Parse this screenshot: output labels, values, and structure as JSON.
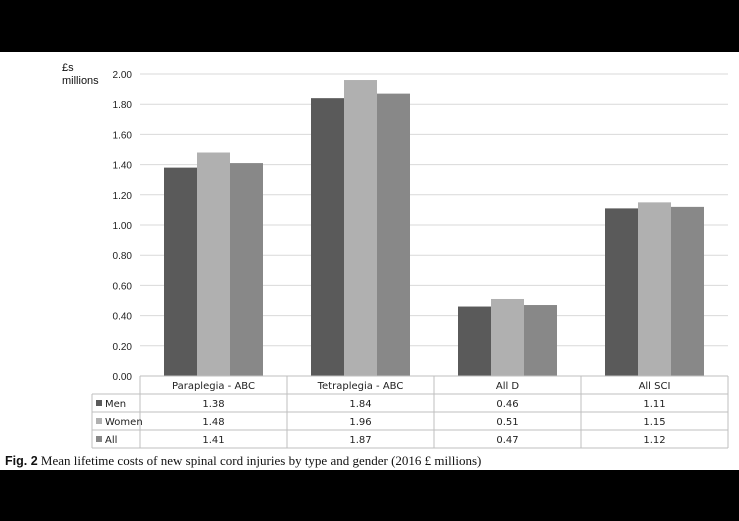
{
  "chart_data": {
    "type": "bar",
    "ylabel": [
      "£s",
      "millions"
    ],
    "ylim": [
      0,
      2
    ],
    "yticks": [
      "0.00",
      "0.20",
      "0.40",
      "0.60",
      "0.80",
      "1.00",
      "1.20",
      "1.40",
      "1.60",
      "1.80",
      "2.00"
    ],
    "grid": true,
    "categories": [
      "Paraplegia - ABC",
      "Tetraplegia - ABC",
      "All D",
      "All SCI"
    ],
    "series": [
      {
        "name": "Men",
        "color": "#5a5a5a",
        "values": [
          1.38,
          1.84,
          0.46,
          1.11
        ],
        "labels": [
          "1.38",
          "1.84",
          "0.46",
          "1.11"
        ]
      },
      {
        "name": "Women",
        "color": "#b0b0b0",
        "values": [
          1.48,
          1.96,
          0.51,
          1.15
        ],
        "labels": [
          "1.48",
          "1.96",
          "0.51",
          "1.15"
        ]
      },
      {
        "name": "All",
        "color": "#888888",
        "values": [
          1.41,
          1.87,
          0.47,
          1.12
        ],
        "labels": [
          "1.41",
          "1.87",
          "0.47",
          "1.12"
        ]
      }
    ]
  },
  "caption": {
    "label": "Fig. 2",
    "text": "Mean lifetime costs of new spinal cord injuries by type and gender (2016 £ millions)"
  }
}
